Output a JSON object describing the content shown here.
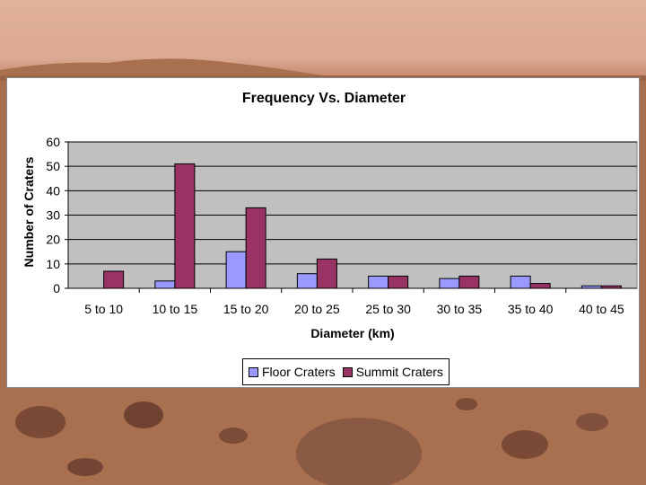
{
  "chart_data": {
    "type": "bar",
    "title": "Frequency Vs. Diameter",
    "xlabel": "Diameter (km)",
    "ylabel": "Number of Craters",
    "categories": [
      "5 to 10",
      "10 to 15",
      "15 to 20",
      "20 to 25",
      "25 to 30",
      "30 to 35",
      "35 to 40",
      "40 to 45"
    ],
    "series": [
      {
        "name": "Floor Craters",
        "values": [
          0,
          3,
          15,
          6,
          5,
          4,
          5,
          1
        ],
        "color": "#9999ff"
      },
      {
        "name": "Summit Craters",
        "values": [
          7,
          51,
          33,
          12,
          5,
          5,
          2,
          1
        ],
        "color": "#993366"
      }
    ],
    "ylim": [
      0,
      60
    ],
    "yticks": [
      0,
      10,
      20,
      30,
      40,
      50,
      60
    ],
    "grid": true,
    "plot_background": "#c0c0c0",
    "legend_position": "bottom"
  }
}
